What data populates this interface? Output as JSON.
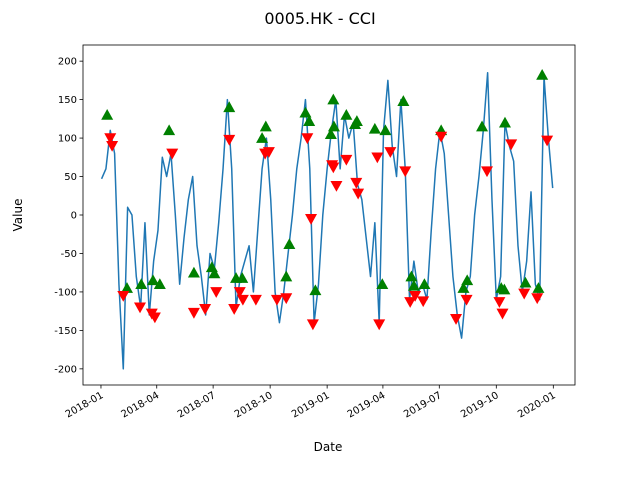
{
  "chart_data": {
    "type": "line",
    "title": "0005.HK - CCI",
    "x_label": "Date",
    "y_label": "Value",
    "xlim": [
      "2017-12-03",
      "2020-02-05"
    ],
    "xticks": [
      {
        "value": "2018-01-01",
        "label": "2018-01"
      },
      {
        "value": "2018-04-01",
        "label": "2018-04"
      },
      {
        "value": "2018-07-01",
        "label": "2018-07"
      },
      {
        "value": "2018-10-01",
        "label": "2018-10"
      },
      {
        "value": "2019-01-01",
        "label": "2019-01"
      },
      {
        "value": "2019-04-01",
        "label": "2019-04"
      },
      {
        "value": "2019-07-01",
        "label": "2019-07"
      },
      {
        "value": "2019-10-01",
        "label": "2019-10"
      },
      {
        "value": "2020-01-01",
        "label": "2020-01"
      }
    ],
    "ylim": [
      -221,
      221
    ],
    "yticks": [
      -200,
      -150,
      -100,
      -50,
      0,
      50,
      100,
      150,
      200
    ],
    "grid": false,
    "series": [
      {
        "type": "line",
        "color": "#1f77b4",
        "x": [
          "2018-01-02",
          "2018-01-09",
          "2018-01-16",
          "2018-01-23",
          "2018-01-30",
          "2018-02-06",
          "2018-02-13",
          "2018-02-20",
          "2018-02-27",
          "2018-03-06",
          "2018-03-13",
          "2018-03-20",
          "2018-03-27",
          "2018-04-03",
          "2018-04-10",
          "2018-04-17",
          "2018-04-24",
          "2018-05-01",
          "2018-05-08",
          "2018-05-15",
          "2018-05-22",
          "2018-05-29",
          "2018-06-05",
          "2018-06-12",
          "2018-06-19",
          "2018-06-26",
          "2018-07-03",
          "2018-07-10",
          "2018-07-17",
          "2018-07-24",
          "2018-07-31",
          "2018-08-07",
          "2018-08-14",
          "2018-08-21",
          "2018-08-28",
          "2018-09-04",
          "2018-09-11",
          "2018-09-18",
          "2018-09-25",
          "2018-10-02",
          "2018-10-09",
          "2018-10-16",
          "2018-10-23",
          "2018-10-30",
          "2018-11-06",
          "2018-11-13",
          "2018-11-20",
          "2018-11-27",
          "2018-12-04",
          "2018-12-11",
          "2018-12-18",
          "2018-12-25",
          "2019-01-01",
          "2019-01-08",
          "2019-01-15",
          "2019-01-22",
          "2019-01-29",
          "2019-02-05",
          "2019-02-12",
          "2019-02-19",
          "2019-02-26",
          "2019-03-05",
          "2019-03-12",
          "2019-03-19",
          "2019-03-26",
          "2019-04-02",
          "2019-04-09",
          "2019-04-16",
          "2019-04-23",
          "2019-04-30",
          "2019-05-07",
          "2019-05-14",
          "2019-05-21",
          "2019-05-28",
          "2019-06-04",
          "2019-06-11",
          "2019-06-18",
          "2019-06-25",
          "2019-07-02",
          "2019-07-09",
          "2019-07-16",
          "2019-07-23",
          "2019-07-30",
          "2019-08-06",
          "2019-08-13",
          "2019-08-20",
          "2019-08-27",
          "2019-09-03",
          "2019-09-10",
          "2019-09-17",
          "2019-09-24",
          "2019-10-01",
          "2019-10-08",
          "2019-10-15",
          "2019-10-22",
          "2019-10-29",
          "2019-11-05",
          "2019-11-12",
          "2019-11-19",
          "2019-11-26",
          "2019-12-03",
          "2019-12-10",
          "2019-12-17",
          "2019-12-24",
          "2019-12-31"
        ],
        "values": [
          47,
          60,
          110,
          80,
          -90,
          -200,
          10,
          0,
          -80,
          -120,
          -10,
          -130,
          -60,
          -20,
          75,
          50,
          80,
          0,
          -90,
          -30,
          20,
          50,
          -40,
          -80,
          -130,
          -50,
          -70,
          -10,
          60,
          150,
          60,
          -120,
          -80,
          -60,
          -40,
          -100,
          -20,
          60,
          100,
          20,
          -100,
          -140,
          -100,
          -50,
          0,
          60,
          100,
          150,
          60,
          -140,
          -90,
          0,
          60,
          110,
          150,
          60,
          130,
          100,
          120,
          40,
          20,
          -30,
          -80,
          -10,
          -140,
          110,
          175,
          90,
          50,
          150,
          60,
          -110,
          -60,
          -100,
          -90,
          -110,
          -20,
          60,
          110,
          80,
          0,
          -80,
          -130,
          -160,
          -100,
          -80,
          0,
          50,
          110,
          185,
          20,
          -110,
          -80,
          120,
          90,
          70,
          -40,
          -100,
          -60,
          30,
          -90,
          -110,
          180,
          100,
          35
        ]
      },
      {
        "type": "scatter",
        "marker": "triangle-up",
        "color": "#008000",
        "x": [
          "2018-01-11",
          "2018-02-12",
          "2018-03-07",
          "2018-03-26",
          "2018-04-06",
          "2018-04-21",
          "2018-05-31",
          "2018-06-29",
          "2018-07-03",
          "2018-07-27",
          "2018-08-07",
          "2018-08-17",
          "2018-09-18",
          "2018-09-24",
          "2018-10-27",
          "2018-11-01",
          "2018-11-27",
          "2018-12-03",
          "2018-12-13",
          "2019-01-07",
          "2019-01-11",
          "2019-01-12",
          "2019-02-01",
          "2019-02-15",
          "2019-02-18",
          "2019-03-19",
          "2019-03-31",
          "2019-04-05",
          "2019-05-04",
          "2019-05-17",
          "2019-05-21",
          "2019-06-07",
          "2019-07-04",
          "2019-08-09",
          "2019-08-15",
          "2019-09-08",
          "2019-10-09",
          "2019-10-14",
          "2019-10-15",
          "2019-11-17",
          "2019-12-08",
          "2019-12-14"
        ],
        "values": [
          130,
          -95,
          -90,
          -85,
          -90,
          110,
          -75,
          -68,
          -76,
          140,
          -82,
          -82,
          100,
          115,
          -80,
          -38,
          133,
          122,
          -98,
          105,
          150,
          115,
          130,
          118,
          122,
          112,
          -90,
          110,
          148,
          -80,
          -92,
          -90,
          110,
          -95,
          -85,
          115,
          -95,
          -97,
          120,
          -88,
          -95,
          182
        ]
      },
      {
        "type": "scatter",
        "marker": "triangle-down",
        "color": "#ff0000",
        "x": [
          "2018-01-16",
          "2018-01-19",
          "2018-02-06",
          "2018-03-05",
          "2018-03-24",
          "2018-03-29",
          "2018-04-26",
          "2018-05-31",
          "2018-06-18",
          "2018-07-06",
          "2018-07-27",
          "2018-08-04",
          "2018-08-13",
          "2018-08-18",
          "2018-09-08",
          "2018-09-23",
          "2018-09-29",
          "2018-10-12",
          "2018-10-27",
          "2018-11-30",
          "2018-12-06",
          "2018-12-09",
          "2019-01-09",
          "2019-01-11",
          "2019-01-16",
          "2019-02-01",
          "2019-02-17",
          "2019-02-20",
          "2019-03-23",
          "2019-03-26",
          "2019-04-13",
          "2019-05-07",
          "2019-05-15",
          "2019-05-23",
          "2019-06-05",
          "2019-07-04",
          "2019-07-28",
          "2019-08-14",
          "2019-09-16",
          "2019-10-06",
          "2019-10-11",
          "2019-10-25",
          "2019-11-15",
          "2019-12-06",
          "2019-12-22"
        ],
        "values": [
          100,
          90,
          -105,
          -120,
          -128,
          -133,
          80,
          -127,
          -122,
          -100,
          98,
          -122,
          -100,
          -110,
          -110,
          80,
          82,
          -110,
          -108,
          100,
          -5,
          -142,
          65,
          62,
          38,
          72,
          42,
          28,
          75,
          -142,
          82,
          57,
          -113,
          -105,
          -112,
          102,
          -135,
          -110,
          57,
          -113,
          -128,
          92,
          -102,
          -108,
          97
        ]
      }
    ]
  }
}
